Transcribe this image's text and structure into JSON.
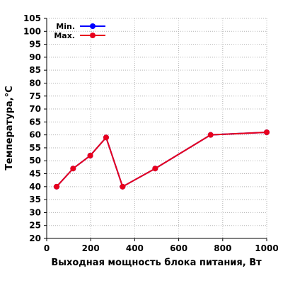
{
  "chart_data": {
    "type": "line",
    "xlabel": "Выходная мощность блока питания, Вт",
    "ylabel": "Температура,°С",
    "xlim": [
      0,
      1000
    ],
    "ylim": [
      20,
      105
    ],
    "x_ticks": [
      0,
      200,
      400,
      600,
      800,
      1000
    ],
    "y_ticks": [
      20,
      25,
      30,
      35,
      40,
      45,
      50,
      55,
      60,
      65,
      70,
      75,
      80,
      85,
      90,
      95,
      100,
      105
    ],
    "grid": true,
    "legend_position": "top-left",
    "series": [
      {
        "name": "Min.",
        "color": "#0000ff",
        "x": [
          45,
          120,
          198,
          270,
          345,
          493,
          745,
          1000
        ],
        "y": [
          40,
          47,
          52,
          59,
          40,
          47,
          60,
          61
        ]
      },
      {
        "name": "Max.",
        "color": "#e8001c",
        "x": [
          45,
          120,
          198,
          270,
          345,
          493,
          745,
          1000
        ],
        "y": [
          40,
          47,
          52,
          59,
          40,
          47,
          60,
          61
        ]
      }
    ]
  }
}
